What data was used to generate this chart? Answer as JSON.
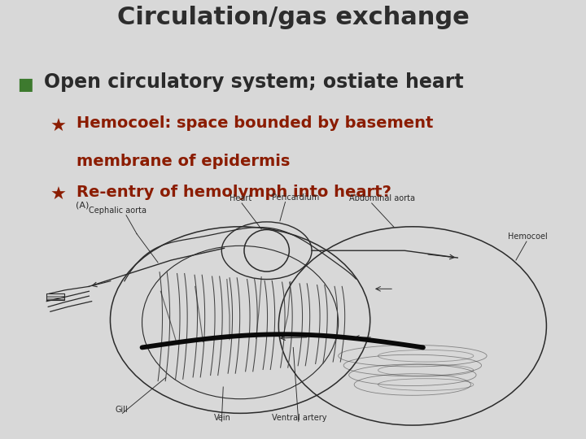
{
  "title": "Circulation/gas exchange",
  "title_color": "#2d2d2d",
  "title_fontsize": 22,
  "bg_color": "#d8d8d8",
  "bullet1_text": "Open circulatory system; ostiate heart",
  "bullet1_color": "#2a2a2a",
  "bullet1_fontsize": 17,
  "bullet1_marker": "■",
  "bullet1_marker_color": "#3d7a2e",
  "sub_bullet_marker": "★",
  "sub_bullet_color": "#8b1c00",
  "sub_bullet_fontsize": 14,
  "sub1_line1": "Hemocoel: space bounded by basement",
  "sub1_line2": "membrane of epidermis",
  "sub2_text": "Re-entry of hemolymph into heart?",
  "diag_label_A": "(A)",
  "diag_lc": "#2a2a2a",
  "diag_bg": "#ffffff",
  "diag_label_fs": 7
}
